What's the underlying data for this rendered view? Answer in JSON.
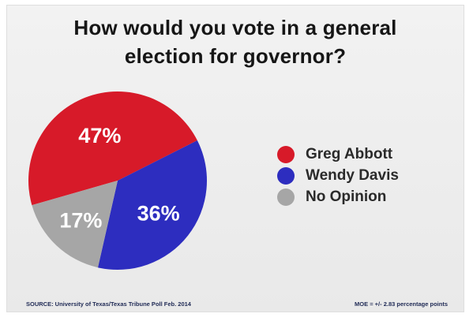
{
  "chart_data": {
    "type": "pie",
    "title_lines": [
      "How would you vote in a general",
      "election for governor?"
    ],
    "slices": [
      {
        "name": "Greg Abbott",
        "value": 47,
        "label": "47%",
        "color": "#d71a29"
      },
      {
        "name": "Wendy Davis",
        "value": 36,
        "label": "36%",
        "color": "#2d2dbf"
      },
      {
        "name": "No Opinion",
        "value": 17,
        "label": "17%",
        "color": "#a6a6a6"
      }
    ],
    "legend": {
      "position": "right"
    }
  },
  "footer": {
    "source": "SOURCE: University of Texas/Texas Tribune Poll Feb. 2014",
    "moe": "MOE = +/- 2.83 percentage points"
  }
}
